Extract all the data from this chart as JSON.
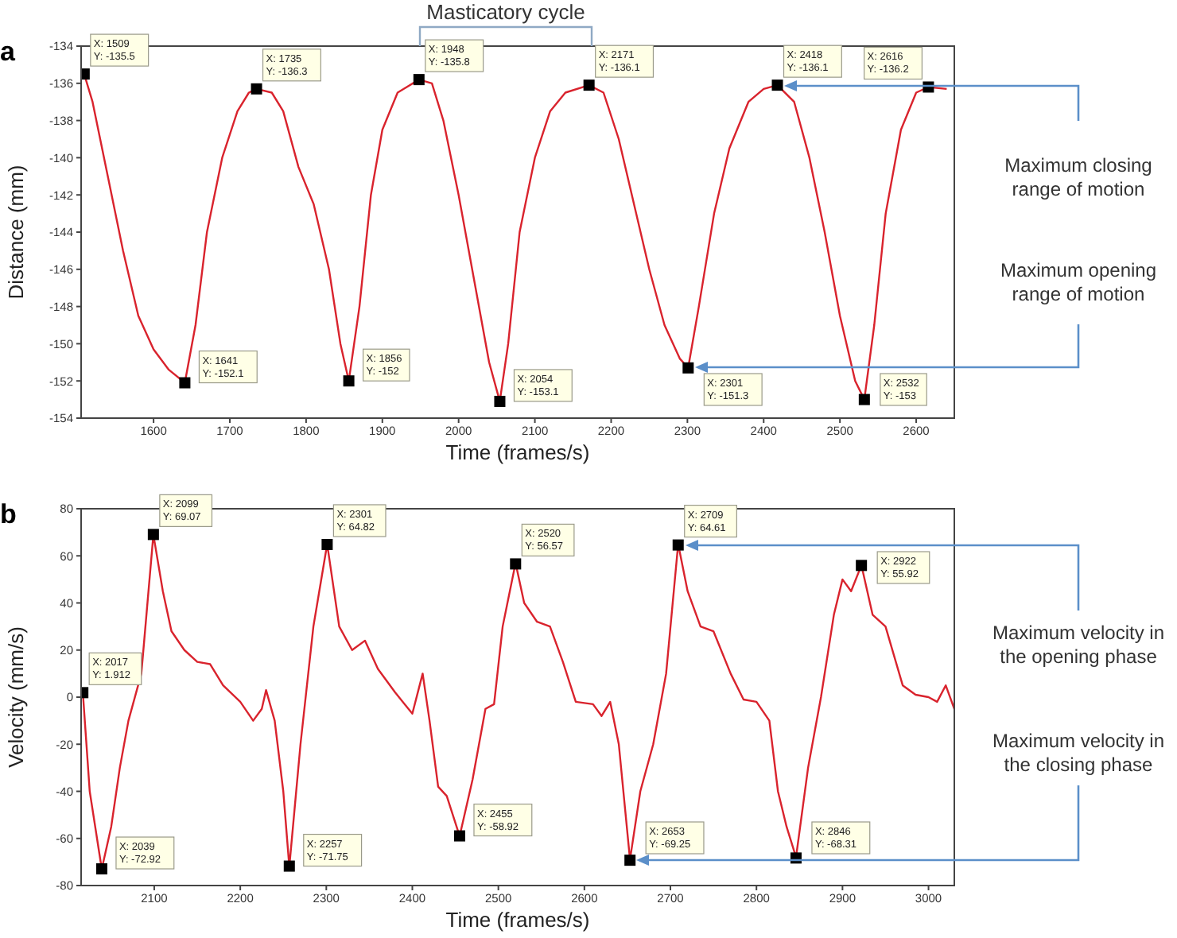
{
  "chart_data": [
    {
      "type": "line",
      "title": "a",
      "xlabel": "Time (frames/s)",
      "ylabel": "Distance (mm)",
      "xlim": [
        1505,
        2650
      ],
      "xticks": [
        1600,
        1700,
        1800,
        1900,
        2000,
        2100,
        2200,
        2300,
        2400,
        2500,
        2600
      ],
      "ylim": [
        -154,
        -134
      ],
      "yticks": [
        -154,
        -152,
        -150,
        -148,
        -146,
        -144,
        -142,
        -140,
        -138,
        -136,
        -134
      ],
      "grid": false,
      "series": [
        {
          "type": "line",
          "color": "#d9232d",
          "x": [
            1509,
            1520,
            1540,
            1560,
            1580,
            1600,
            1620,
            1641,
            1655,
            1670,
            1690,
            1710,
            1725,
            1735,
            1755,
            1770,
            1790,
            1810,
            1830,
            1845,
            1856,
            1870,
            1885,
            1900,
            1920,
            1948,
            1965,
            1980,
            2000,
            2020,
            2040,
            2054,
            2065,
            2080,
            2100,
            2120,
            2140,
            2171,
            2190,
            2210,
            2230,
            2250,
            2270,
            2290,
            2301,
            2315,
            2335,
            2355,
            2380,
            2400,
            2418,
            2440,
            2460,
            2480,
            2500,
            2520,
            2532,
            2545,
            2560,
            2580,
            2600,
            2616,
            2640
          ],
          "values": [
            -135.5,
            -137,
            -141,
            -145,
            -148.5,
            -150.3,
            -151.4,
            -152.1,
            -149,
            -144,
            -140,
            -137.5,
            -136.5,
            -136.3,
            -136.5,
            -137.5,
            -140.5,
            -142.5,
            -146,
            -150,
            -152,
            -148,
            -142,
            -138.5,
            -136.5,
            -135.8,
            -136,
            -138,
            -142,
            -146.5,
            -151,
            -153.1,
            -150,
            -144,
            -140,
            -137.5,
            -136.5,
            -136.1,
            -136.5,
            -139,
            -142.5,
            -146,
            -149,
            -150.8,
            -151.3,
            -148,
            -143,
            -139.5,
            -137,
            -136.3,
            -136.1,
            -137,
            -140,
            -144,
            -148.5,
            -152,
            -153,
            -149,
            -143,
            -138.5,
            -136.5,
            -136.2,
            -136.3
          ]
        },
        {
          "type": "scatter",
          "color": "#000000",
          "marker": "square",
          "x": [
            1509,
            1641,
            1735,
            1856,
            1948,
            2054,
            2171,
            2301,
            2418,
            2532,
            2616
          ],
          "values": [
            -135.5,
            -152.1,
            -136.3,
            -152,
            -135.8,
            -153.1,
            -136.1,
            -151.3,
            -136.1,
            -153,
            -136.2
          ],
          "value_labels": [
            "X: 1509\nY: -135.5",
            "X: 1641\nY: -152.1",
            "X: 1735\nY: -136.3",
            "X: 1856\nY: -152",
            "X: 1948\nY: -135.8",
            "X: 2054\nY: -153.1",
            "X: 2171\nY: -136.1",
            "X: 2301\nY: -151.3",
            "X: 2418\nY: -136.1",
            "X: 2532\nY: -153",
            "X: 2616\nY: -136.2"
          ]
        }
      ],
      "annotations": [
        "Masticatory cycle",
        "Maximum closing range of motion",
        "Maximum opening range of motion"
      ]
    },
    {
      "type": "line",
      "title": "b",
      "xlabel": "Time (frames/s)",
      "ylabel": "Velocity (mm/s)",
      "xlim": [
        2015,
        3030
      ],
      "xticks": [
        2100,
        2200,
        2300,
        2400,
        2500,
        2600,
        2700,
        2800,
        2900,
        3000
      ],
      "ylim": [
        -80,
        80
      ],
      "yticks": [
        -80,
        -60,
        -40,
        -20,
        0,
        20,
        40,
        60,
        80
      ],
      "grid": false,
      "series": [
        {
          "type": "line",
          "color": "#d9232d",
          "x": [
            2017,
            2025,
            2039,
            2050,
            2060,
            2070,
            2085,
            2099,
            2110,
            2120,
            2135,
            2150,
            2165,
            2180,
            2200,
            2215,
            2225,
            2230,
            2240,
            2250,
            2257,
            2270,
            2285,
            2301,
            2315,
            2330,
            2345,
            2360,
            2380,
            2400,
            2412,
            2420,
            2430,
            2440,
            2455,
            2470,
            2485,
            2495,
            2505,
            2520,
            2530,
            2545,
            2560,
            2575,
            2590,
            2610,
            2620,
            2630,
            2640,
            2653,
            2665,
            2680,
            2695,
            2709,
            2720,
            2735,
            2750,
            2770,
            2785,
            2800,
            2815,
            2825,
            2835,
            2846,
            2860,
            2875,
            2890,
            2900,
            2910,
            2922,
            2935,
            2950,
            2970,
            2985,
            3000,
            3010,
            3020,
            3030
          ],
          "values": [
            2,
            -40,
            -73,
            -55,
            -30,
            -10,
            10,
            69,
            45,
            28,
            20,
            15,
            14,
            5,
            -2,
            -10,
            -5,
            3,
            -10,
            -40,
            -72,
            -20,
            30,
            65,
            30,
            20,
            24,
            12,
            2,
            -7,
            10,
            -10,
            -38,
            -42,
            -59,
            -35,
            -5,
            -3,
            30,
            57,
            40,
            32,
            30,
            15,
            -2,
            -3,
            -8,
            -2,
            -20,
            -69,
            -40,
            -20,
            10,
            65,
            45,
            30,
            28,
            10,
            -1,
            -2,
            -10,
            -40,
            -55,
            -68,
            -30,
            0,
            35,
            50,
            45,
            56,
            35,
            30,
            5,
            1,
            0,
            -2,
            5,
            -5
          ]
        },
        {
          "type": "scatter",
          "color": "#000000",
          "marker": "square",
          "x": [
            2017,
            2039,
            2099,
            2257,
            2301,
            2455,
            2520,
            2653,
            2709,
            2846,
            2922
          ],
          "values": [
            1.912,
            -72.92,
            69.07,
            -71.75,
            64.82,
            -58.92,
            56.57,
            -69.25,
            64.61,
            -68.31,
            55.92
          ],
          "value_labels": [
            "X: 2017\nY: 1.912",
            "X: 2039\nY: -72.92",
            "X: 2099\nY: 69.07",
            "X: 2257\nY: -71.75",
            "X: 2301\nY: 64.82",
            "X: 2455\nY: -58.92",
            "X: 2520\nY: 56.57",
            "X: 2653\nY: -69.25",
            "X: 2709\nY: 64.61",
            "X: 2846\nY: -68.31",
            "X: 2922\nY: 55.92"
          ]
        }
      ],
      "annotations": [
        "Maximum velocity in the opening phase",
        "Maximum velocity in the closing phase"
      ]
    }
  ]
}
